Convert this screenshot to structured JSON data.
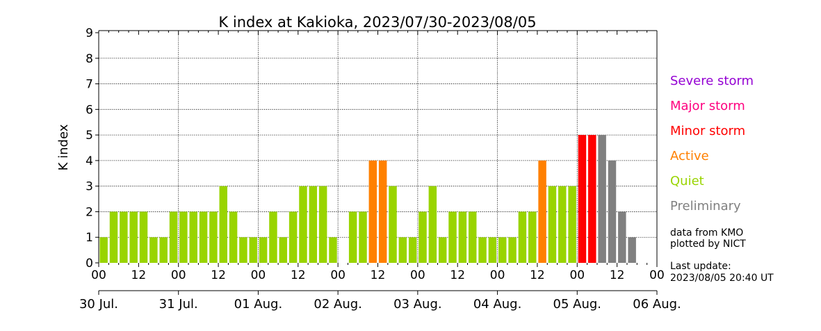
{
  "chart_data": {
    "type": "bar",
    "title": "K index at Kakioka, 2023/07/30-2023/08/05",
    "ylabel": "K index",
    "xlabel": "",
    "ylim": [
      0,
      9
    ],
    "yticks": [
      "0",
      "1",
      "2",
      "3",
      "4",
      "5",
      "6",
      "7",
      "8",
      "9"
    ],
    "grid": true,
    "hour_tick_labels": [
      "00",
      "12",
      "00",
      "12",
      "00",
      "12",
      "00",
      "12",
      "00",
      "12",
      "00",
      "12",
      "00",
      "12",
      "00"
    ],
    "date_labels": [
      "30 Jul.",
      "31 Jul.",
      "01 Aug.",
      "02 Aug.",
      "03 Aug.",
      "04 Aug.",
      "05 Aug.",
      "06 Aug."
    ],
    "interval_hours": 3,
    "values": [
      1,
      2,
      2,
      2,
      2,
      1,
      1,
      2,
      2,
      2,
      2,
      2,
      3,
      2,
      1,
      1,
      1,
      2,
      1,
      2,
      3,
      3,
      3,
      1,
      0,
      2,
      2,
      4,
      4,
      3,
      1,
      1,
      2,
      3,
      1,
      2,
      2,
      2,
      1,
      1,
      1,
      1,
      2,
      2,
      4,
      3,
      3,
      3,
      5,
      5,
      5,
      4,
      2,
      1
    ],
    "status": [
      "q",
      "q",
      "q",
      "q",
      "q",
      "q",
      "q",
      "q",
      "q",
      "q",
      "q",
      "q",
      "q",
      "q",
      "q",
      "q",
      "q",
      "q",
      "q",
      "q",
      "q",
      "q",
      "q",
      "q",
      "q",
      "q",
      "q",
      "a",
      "a",
      "q",
      "q",
      "q",
      "q",
      "q",
      "q",
      "q",
      "q",
      "q",
      "q",
      "q",
      "q",
      "q",
      "q",
      "q",
      "a",
      "q",
      "q",
      "q",
      "mn",
      "mn",
      "p",
      "p",
      "p",
      "p"
    ],
    "legend": [
      {
        "key": "sv",
        "label": "Severe storm",
        "color": "#9400d3"
      },
      {
        "key": "mj",
        "label": "Major storm",
        "color": "#ff0080"
      },
      {
        "key": "mn",
        "label": "Minor storm",
        "color": "#ff0000"
      },
      {
        "key": "a",
        "label": "Active",
        "color": "#ff8000"
      },
      {
        "key": "q",
        "label": "Quiet",
        "color": "#99d400"
      },
      {
        "key": "p",
        "label": "Preliminary",
        "color": "#808080"
      }
    ]
  },
  "notes": {
    "source": "data from KMO",
    "plotted": "plotted by NICT",
    "update_label": "Last update:",
    "update_time": "2023/08/05 20:40 UT"
  }
}
